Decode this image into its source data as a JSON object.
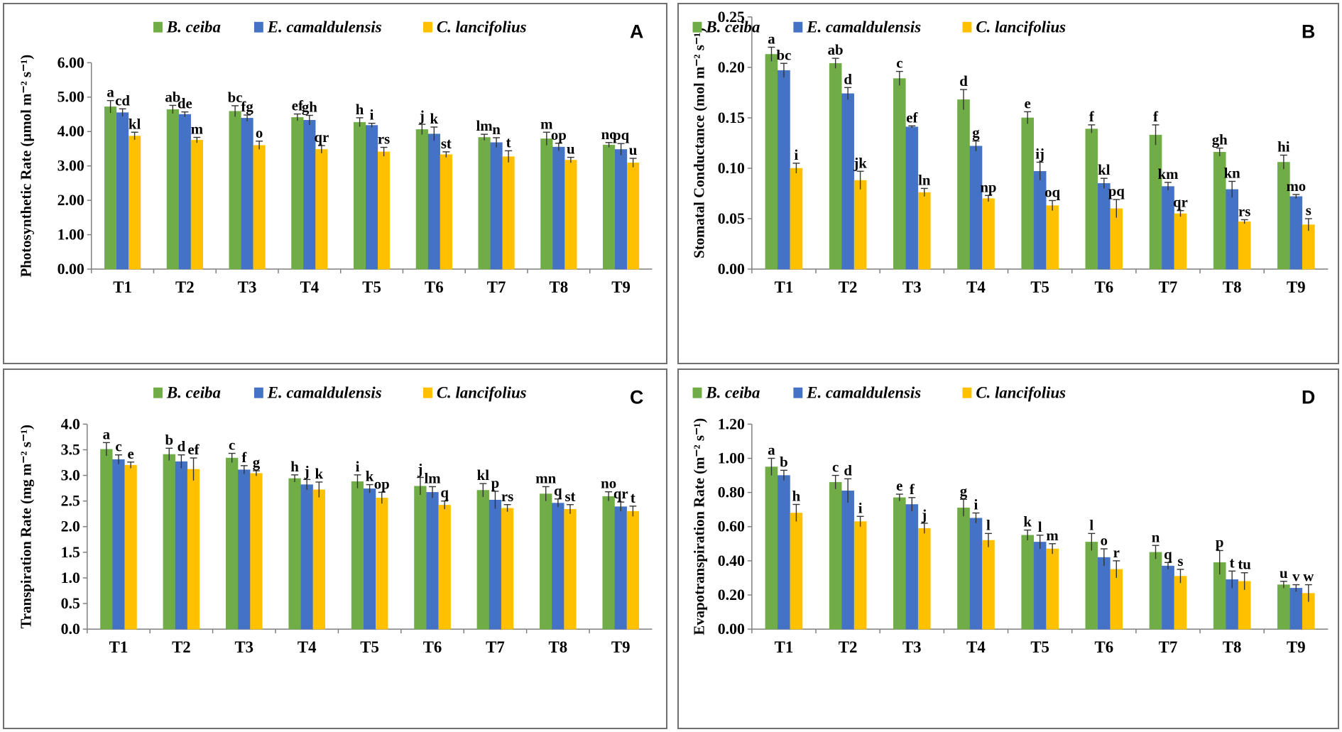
{
  "colors": {
    "b_ceiba": "#70ad47",
    "e_camaldulensis": "#4472c4",
    "c_lancifolius": "#ffc000",
    "axis": "#7f7f7f"
  },
  "chart_data": [
    {
      "id": "A",
      "type": "bar",
      "panel_label": "A",
      "title": "",
      "ylabel": "Photosynthetic Rate  (µmol m⁻² s⁻¹)",
      "categories": [
        "T1",
        "T2",
        "T3",
        "T4",
        "T5",
        "T6",
        "T7",
        "T8",
        "T9"
      ],
      "ylim": [
        0,
        6
      ],
      "yticks": [
        "0.00",
        "1.00",
        "2.00",
        "3.00",
        "4.00",
        "5.00",
        "6.00"
      ],
      "legend": [
        "B. ceiba",
        "E. camaldulensis",
        "C. lancifolius"
      ],
      "legend_position": "top",
      "series": [
        {
          "name": "B. ceiba",
          "values": [
            4.72,
            4.64,
            4.59,
            4.41,
            4.27,
            4.06,
            3.83,
            3.79,
            3.61
          ],
          "errors": [
            0.18,
            0.12,
            0.16,
            0.1,
            0.13,
            0.15,
            0.09,
            0.19,
            0.07
          ],
          "letters": [
            "a",
            "ab",
            "bc",
            "ef",
            "h",
            "j",
            "lm",
            "m",
            "no"
          ]
        },
        {
          "name": "E. camaldulensis",
          "values": [
            4.55,
            4.5,
            4.39,
            4.33,
            4.18,
            3.93,
            3.68,
            3.55,
            3.48
          ],
          "errors": [
            0.11,
            0.07,
            0.09,
            0.14,
            0.06,
            0.2,
            0.14,
            0.11,
            0.17
          ],
          "letters": [
            "cd",
            "de",
            "fg",
            "gh",
            "i",
            "k",
            "n",
            "op",
            "pq"
          ]
        },
        {
          "name": "C. lancifolius",
          "values": [
            3.87,
            3.75,
            3.6,
            3.48,
            3.41,
            3.33,
            3.27,
            3.17,
            3.09
          ],
          "errors": [
            0.11,
            0.08,
            0.12,
            0.11,
            0.13,
            0.08,
            0.17,
            0.08,
            0.13
          ],
          "letters": [
            "kl",
            "m",
            "o",
            "qr",
            "rs",
            "st",
            "t",
            "u",
            "u"
          ]
        }
      ]
    },
    {
      "id": "B",
      "type": "bar",
      "panel_label": "B",
      "title": "",
      "ylabel": "Stomatal Conductance (mol m⁻² s⁻¹)",
      "categories": [
        "T1",
        "T2",
        "T3",
        "T4",
        "T5",
        "T6",
        "T7",
        "T8",
        "T9"
      ],
      "ylim": [
        0,
        0.25
      ],
      "yticks": [
        "0.00",
        "0.05",
        "0.10",
        "0.15",
        "0.20",
        "0.25"
      ],
      "legend": [
        "B. ceiba",
        "E. camaldulensis",
        "C. lancifolius"
      ],
      "legend_position": "top",
      "series": [
        {
          "name": "B. ceiba",
          "values": [
            0.213,
            0.204,
            0.189,
            0.168,
            0.15,
            0.139,
            0.133,
            0.116,
            0.106
          ],
          "errors": [
            0.007,
            0.005,
            0.007,
            0.01,
            0.006,
            0.004,
            0.01,
            0.004,
            0.007
          ],
          "letters": [
            "a",
            "ab",
            "c",
            "d",
            "e",
            "f",
            "f",
            "gh",
            "hi"
          ]
        },
        {
          "name": "E. camaldulensis",
          "values": [
            0.197,
            0.174,
            0.141,
            0.122,
            0.097,
            0.085,
            0.082,
            0.079,
            0.072
          ],
          "errors": [
            0.007,
            0.006,
            0.001,
            0.005,
            0.009,
            0.005,
            0.004,
            0.008,
            0.002
          ],
          "letters": [
            "bc",
            "d",
            "ef",
            "g",
            "ij",
            "kl",
            "km",
            "kn",
            "mo"
          ]
        },
        {
          "name": "C. lancifolius",
          "values": [
            0.1,
            0.088,
            0.076,
            0.07,
            0.063,
            0.06,
            0.055,
            0.047,
            0.044
          ],
          "errors": [
            0.005,
            0.009,
            0.004,
            0.003,
            0.005,
            0.009,
            0.003,
            0.002,
            0.006
          ],
          "letters": [
            "i",
            "jk",
            "ln",
            "np",
            "oq",
            "pq",
            "qr",
            "rs",
            "s"
          ]
        }
      ]
    },
    {
      "id": "C",
      "type": "bar",
      "panel_label": "C",
      "title": "",
      "ylabel": "Transpiration Rate (mg m⁻² s⁻¹)",
      "categories": [
        "T1",
        "T2",
        "T3",
        "T4",
        "T5",
        "T6",
        "T7",
        "T8",
        "T9"
      ],
      "ylim": [
        0,
        4.0
      ],
      "yticks": [
        "0.0",
        "0.5",
        "1.0",
        "1.5",
        "2.0",
        "2.5",
        "3.0",
        "3.5",
        "4.0"
      ],
      "legend": [
        "B. ceiba",
        "E. camaldulensis",
        "C. lancifolius"
      ],
      "legend_position": "top",
      "series": [
        {
          "name": "B. ceiba",
          "values": [
            3.51,
            3.41,
            3.34,
            2.94,
            2.88,
            2.79,
            2.71,
            2.64,
            2.59
          ],
          "errors": [
            0.13,
            0.12,
            0.09,
            0.07,
            0.13,
            0.17,
            0.13,
            0.14,
            0.09
          ],
          "letters": [
            "a",
            "b",
            "c",
            "h",
            "i",
            "j",
            "kl",
            "mn",
            "no"
          ]
        },
        {
          "name": "E. camaldulensis",
          "values": [
            3.31,
            3.27,
            3.11,
            2.82,
            2.74,
            2.67,
            2.52,
            2.46,
            2.39
          ],
          "errors": [
            0.09,
            0.13,
            0.08,
            0.1,
            0.08,
            0.11,
            0.17,
            0.08,
            0.09
          ],
          "letters": [
            "c",
            "d",
            "f",
            "j",
            "k",
            "lm",
            "p",
            "q",
            "qr"
          ]
        },
        {
          "name": "C. lancifolius",
          "values": [
            3.2,
            3.12,
            3.04,
            2.72,
            2.56,
            2.42,
            2.36,
            2.34,
            2.3
          ],
          "errors": [
            0.06,
            0.22,
            0.05,
            0.15,
            0.11,
            0.08,
            0.07,
            0.09,
            0.1
          ],
          "letters": [
            "e",
            "ef",
            "g",
            "k",
            "op",
            "q",
            "rs",
            "st",
            "t"
          ]
        }
      ]
    },
    {
      "id": "D",
      "type": "bar",
      "panel_label": "D",
      "title": "",
      "ylabel": "Evapotranspiration Rate (m⁻² s⁻¹)",
      "categories": [
        "T1",
        "T2",
        "T3",
        "T4",
        "T5",
        "T6",
        "T7",
        "T8",
        "T9"
      ],
      "ylim": [
        0,
        1.2
      ],
      "yticks": [
        "0.00",
        "0.20",
        "0.40",
        "0.60",
        "0.80",
        "1.00",
        "1.20"
      ],
      "legend": [
        "B. ceiba",
        "E. camaldulensis",
        "C. lancifolius"
      ],
      "legend_position": "top",
      "series": [
        {
          "name": "B. ceiba",
          "values": [
            0.95,
            0.86,
            0.77,
            0.71,
            0.55,
            0.51,
            0.45,
            0.39,
            0.26
          ],
          "errors": [
            0.05,
            0.04,
            0.02,
            0.05,
            0.03,
            0.05,
            0.04,
            0.07,
            0.02
          ],
          "letters": [
            "a",
            "c",
            "e",
            "g",
            "k",
            "l",
            "n",
            "p",
            "u"
          ]
        },
        {
          "name": "E. camaldulensis",
          "values": [
            0.9,
            0.81,
            0.73,
            0.65,
            0.51,
            0.42,
            0.37,
            0.29,
            0.24
          ],
          "errors": [
            0.03,
            0.07,
            0.04,
            0.03,
            0.04,
            0.05,
            0.02,
            0.05,
            0.02
          ],
          "letters": [
            "b",
            "d",
            "f",
            "i",
            "l",
            "o",
            "q",
            "t",
            "v"
          ]
        },
        {
          "name": "C. lancifolius",
          "values": [
            0.68,
            0.63,
            0.59,
            0.52,
            0.47,
            0.35,
            0.31,
            0.28,
            0.21
          ],
          "errors": [
            0.05,
            0.03,
            0.03,
            0.04,
            0.03,
            0.05,
            0.04,
            0.05,
            0.05
          ],
          "letters": [
            "h",
            "i",
            "j",
            "l",
            "m",
            "r",
            "s",
            "tu",
            "w"
          ]
        }
      ]
    }
  ]
}
